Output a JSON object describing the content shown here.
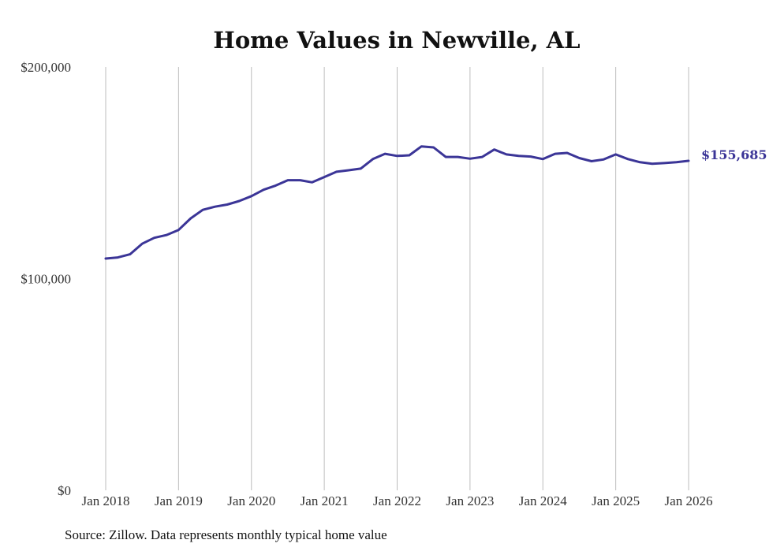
{
  "chart_data": {
    "type": "line",
    "title": "Home Values in Newville, AL",
    "xlabel": "",
    "ylabel": "",
    "ylim": [
      0,
      200000
    ],
    "y_ticks": [
      0,
      100000,
      200000
    ],
    "y_tick_labels": [
      "$0",
      "$100,000",
      "$200,000"
    ],
    "x_ticks": [
      2018,
      2019,
      2020,
      2021,
      2022,
      2023,
      2024,
      2025,
      2026
    ],
    "x_tick_labels": [
      "Jan 2018",
      "Jan 2019",
      "Jan 2020",
      "Jan 2021",
      "Jan 2022",
      "Jan 2023",
      "Jan 2024",
      "Jan 2025",
      "Jan 2026"
    ],
    "grid": "vertical",
    "line_color": "#3b3597",
    "series": [
      {
        "name": "Typical home value",
        "x": [
          2018.0,
          2018.167,
          2018.333,
          2018.5,
          2018.667,
          2018.833,
          2019.0,
          2019.167,
          2019.333,
          2019.5,
          2019.667,
          2019.833,
          2020.0,
          2020.167,
          2020.333,
          2020.5,
          2020.667,
          2020.833,
          2021.0,
          2021.167,
          2021.333,
          2021.5,
          2021.667,
          2021.833,
          2022.0,
          2022.167,
          2022.333,
          2022.5,
          2022.667,
          2022.833,
          2023.0,
          2023.167,
          2023.333,
          2023.5,
          2023.667,
          2023.833,
          2024.0,
          2024.167,
          2024.333,
          2024.5,
          2024.667,
          2024.833,
          2025.0,
          2025.167,
          2025.333,
          2025.5,
          2025.667,
          2025.833,
          2026.0
        ],
        "values": [
          109500,
          110000,
          111500,
          116500,
          119300,
          120600,
          123000,
          128500,
          132500,
          134000,
          135000,
          136700,
          139000,
          142000,
          144000,
          146500,
          146500,
          145500,
          148000,
          150500,
          151200,
          152000,
          156500,
          159000,
          158000,
          158300,
          162500,
          162000,
          157500,
          157500,
          156700,
          157500,
          161000,
          158700,
          158000,
          157700,
          156500,
          159000,
          159400,
          157000,
          155500,
          156300,
          158700,
          156500,
          155000,
          154300,
          154600,
          155000,
          155685
        ]
      }
    ],
    "end_label": "$155,685",
    "source": "Source: Zillow. Data represents monthly typical home value"
  }
}
